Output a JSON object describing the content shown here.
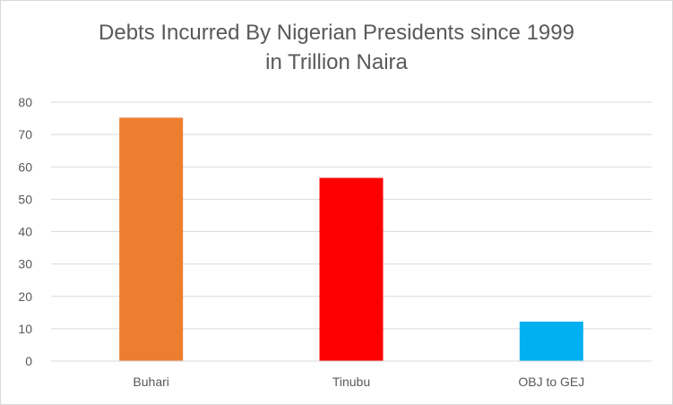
{
  "chart_data": {
    "type": "bar",
    "title_lines": [
      "Debts Incurred  By Nigerian Presidents since 1999",
      "in Trillion Naira"
    ],
    "categories": [
      "Buhari",
      "Tinubu",
      "OBJ to GEJ"
    ],
    "values": [
      75.2,
      56.6,
      12.2
    ],
    "bar_colors": [
      "#ED7D31",
      "#FF0000",
      "#00B0F0"
    ],
    "xlabel": "",
    "ylabel": "",
    "ylim": [
      0,
      80
    ],
    "yticks": [
      "0",
      "10",
      "20",
      "30",
      "40",
      "50",
      "60",
      "70",
      "80"
    ],
    "grid": true,
    "gridline_color": "#d9d9d9",
    "legend": "none"
  }
}
